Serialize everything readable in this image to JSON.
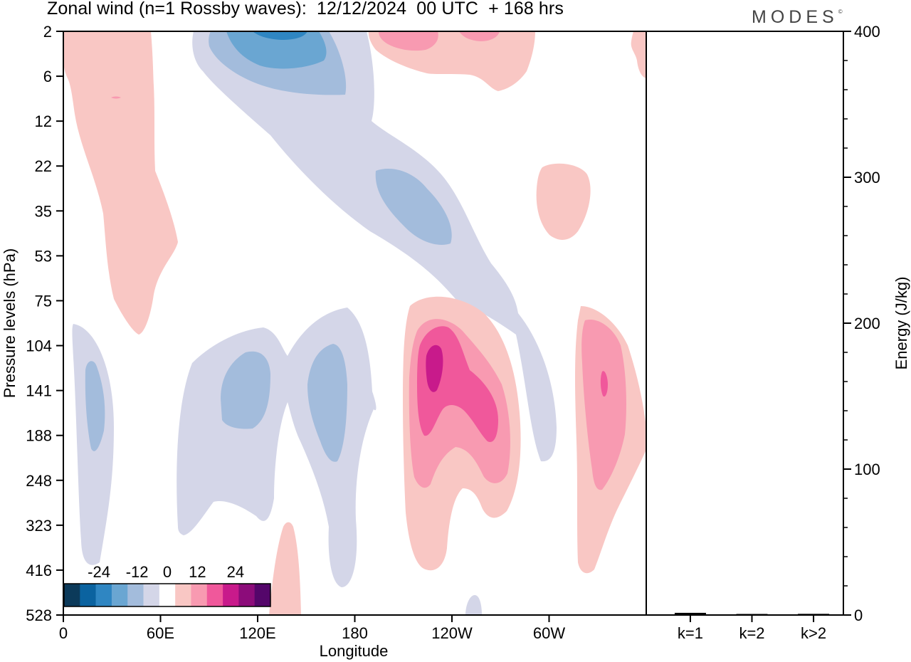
{
  "title": "Zonal wind (n=1 Rossby waves):  12/12/2024  00 UTC  + 168 hrs",
  "brand": "MODES",
  "brand_mark": "©",
  "chart_data": [
    {
      "type": "heatmap",
      "title": "Zonal wind (n=1 Rossby waves):  12/12/2024  00 UTC  + 168 hrs",
      "xlabel": "Longitude",
      "ylabel": "Pressure levels (hPa)",
      "x_ticks": [
        "0",
        "60E",
        "120E",
        "180",
        "120W",
        "60W"
      ],
      "x_tick_lon": [
        0,
        60,
        120,
        180,
        240,
        300
      ],
      "xlim": [
        0,
        360
      ],
      "y_ticks": [
        "2",
        "6",
        "12",
        "22",
        "35",
        "53",
        "75",
        "104",
        "141",
        "188",
        "248",
        "323",
        "416",
        "528"
      ],
      "colorbar": {
        "labels": [
          "-24",
          "-12",
          "0",
          "12",
          "24"
        ],
        "label_values": [
          -24,
          -12,
          0,
          12,
          24
        ],
        "levels": [
          -30,
          -25,
          -20,
          -15,
          -10,
          -5,
          5,
          10,
          15,
          20,
          25,
          30
        ],
        "colors": [
          "#0c3a5a",
          "#0b63a0",
          "#2f86c2",
          "#6aa6d2",
          "#a3bcdc",
          "#d4d6e8",
          "#ffffff",
          "#f9c7c4",
          "#f89ab1",
          "#f0589b",
          "#c81a8b",
          "#8c0c7a",
          "#54066a"
        ]
      },
      "features": [
        {
          "sign": "negative",
          "max_level": -20,
          "lon_range": [
            80,
            165
          ],
          "p_range": [
            2,
            6
          ]
        },
        {
          "sign": "negative",
          "max_level": -10,
          "lon_range": [
            190,
            240
          ],
          "p_range": [
            22,
            50
          ]
        },
        {
          "sign": "negative",
          "max_level": -10,
          "lon_range": [
            12,
            27
          ],
          "p_range": [
            104,
            188
          ]
        },
        {
          "sign": "negative",
          "max_level": -10,
          "lon_range": [
            96,
            128
          ],
          "p_range": [
            104,
            188
          ]
        },
        {
          "sign": "negative",
          "max_level": -10,
          "lon_range": [
            150,
            176
          ],
          "p_range": [
            104,
            248
          ]
        },
        {
          "sign": "positive",
          "max_level": 20,
          "lon_range": [
            219,
            277
          ],
          "p_range": [
            75,
            416
          ]
        },
        {
          "sign": "positive",
          "max_level": 15,
          "lon_range": [
            319,
            358
          ],
          "p_range": [
            75,
            416
          ]
        },
        {
          "sign": "positive",
          "max_level": 10,
          "lon_range": [
            188,
            278
          ],
          "p_range": [
            2,
            6
          ]
        },
        {
          "sign": "positive",
          "max_level": 5,
          "lon_range": [
            0,
            70
          ],
          "p_range": [
            2,
            75
          ]
        }
      ]
    },
    {
      "type": "bar",
      "categories": [
        "k=1",
        "k=2",
        "k>2"
      ],
      "values": [
        1.5,
        0.6,
        0.8
      ],
      "ylabel": "Energy (J/kg)",
      "ylim": [
        0,
        400
      ],
      "y_ticks": [
        "0",
        "100",
        "200",
        "300",
        "400"
      ],
      "y_tick_values": [
        0,
        100,
        200,
        300,
        400
      ],
      "y_minor_step": 20,
      "color": "#000000"
    }
  ]
}
